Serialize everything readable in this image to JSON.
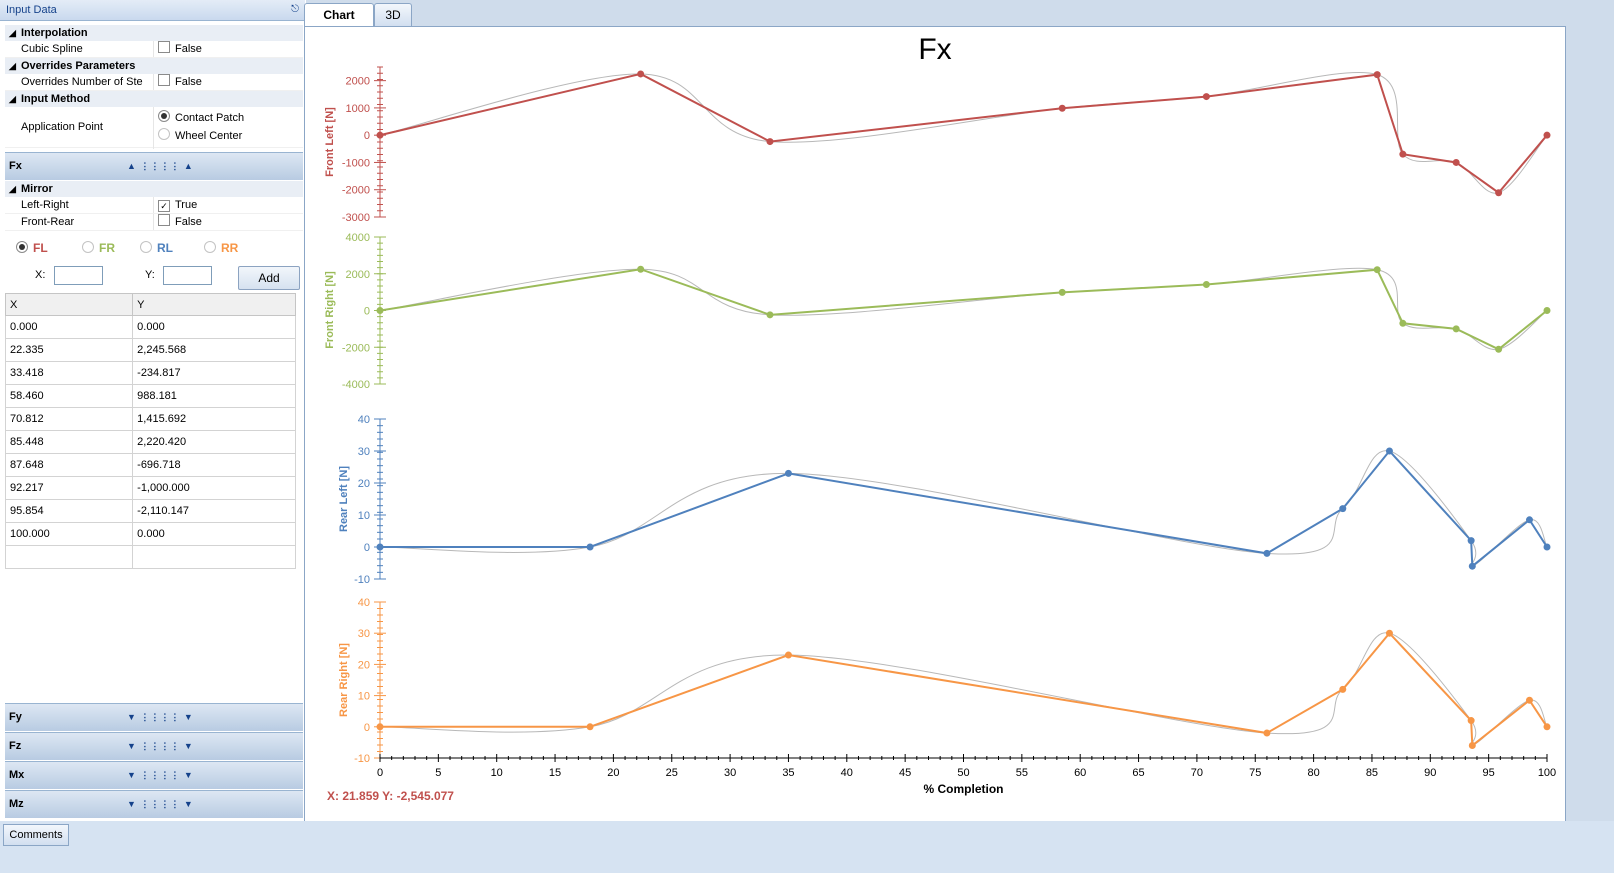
{
  "window": {
    "panel_title": "Input Data"
  },
  "tabs": [
    {
      "label": "Chart"
    },
    {
      "label": "3D"
    }
  ],
  "props": {
    "interpolation": {
      "label": "Interpolation",
      "cubic_spline_label": "Cubic Spline",
      "cubic_spline_value": "False"
    },
    "overrides": {
      "label": "Overrides Parameters",
      "override_label": "Overrides Number of Ste",
      "override_value": "False"
    },
    "input_method": {
      "label": "Input Method",
      "application_point_label": "Application Point",
      "options": [
        "Contact Patch",
        "Wheel Center"
      ]
    }
  },
  "fx_section": {
    "label": "Fx",
    "mirror_label": "Mirror",
    "left_right_label": "Left-Right",
    "left_right_value": "True",
    "front_rear_label": "Front-Rear",
    "front_rear_value": "False"
  },
  "wheel_radios": [
    {
      "label": "FL",
      "color": "#c0504d"
    },
    {
      "label": "FR",
      "color": "#9bbb59"
    },
    {
      "label": "RL",
      "color": "#4f81bd"
    },
    {
      "label": "RR",
      "color": "#f79646"
    }
  ],
  "add_row": {
    "x_label": "X:",
    "y_label": "Y:",
    "add_label": "Add"
  },
  "table": {
    "headers": [
      "X",
      "Y"
    ],
    "rows": [
      [
        "0.000",
        "0.000"
      ],
      [
        "22.335",
        "2,245.568"
      ],
      [
        "33.418",
        "-234.817"
      ],
      [
        "58.460",
        "988.181"
      ],
      [
        "70.812",
        "1,415.692"
      ],
      [
        "85.448",
        "2,220.420"
      ],
      [
        "87.648",
        "-696.718"
      ],
      [
        "92.217",
        "-1,000.000"
      ],
      [
        "95.854",
        "-2,110.147"
      ],
      [
        "100.000",
        "0.000"
      ],
      [
        "",
        ""
      ]
    ]
  },
  "sections": [
    {
      "label": "Fy"
    },
    {
      "label": "Fz"
    },
    {
      "label": "Mx"
    },
    {
      "label": "Mz"
    }
  ],
  "footer": {
    "comments_label": "Comments"
  },
  "chart_data": {
    "type": "line",
    "title": "Fx",
    "xlabel": "% Completion",
    "xlim": [
      0,
      100
    ],
    "xticks": [
      0,
      5,
      10,
      15,
      20,
      25,
      30,
      35,
      40,
      45,
      50,
      55,
      60,
      65,
      70,
      75,
      80,
      85,
      90,
      95,
      100
    ],
    "cursor_readout": "X: 21.859 Y: -2,545.077",
    "panels": [
      {
        "name": "Front Left [N]",
        "color": "#c0504d",
        "ylim": [
          -3000,
          2500
        ],
        "yticks": [
          "2000",
          "1000",
          "0",
          "-1000",
          "-2000",
          "-3000"
        ],
        "x": [
          0,
          22.335,
          33.418,
          58.46,
          70.812,
          85.448,
          87.648,
          92.217,
          95.854,
          100
        ],
        "y": [
          0,
          2245.568,
          -234.817,
          988.181,
          1415.692,
          2220.42,
          -696.718,
          -1000,
          -2110.147,
          0
        ]
      },
      {
        "name": "Front Right [N]",
        "color": "#9bbb59",
        "ylim": [
          -4000,
          4000
        ],
        "yticks": [
          "4000",
          "2000",
          "0",
          "-2000",
          "-4000"
        ],
        "x": [
          0,
          22.335,
          33.418,
          58.46,
          70.812,
          85.448,
          87.648,
          92.217,
          95.854,
          100
        ],
        "y": [
          0,
          2245.568,
          -234.817,
          988.181,
          1415.692,
          2220.42,
          -696.718,
          -1000,
          -2110.147,
          0
        ]
      },
      {
        "name": "Rear Left [N]",
        "color": "#4f81bd",
        "ylim": [
          -10,
          40
        ],
        "yticks": [
          "40",
          "30",
          "20",
          "10",
          "0",
          "-10"
        ],
        "x": [
          0,
          18,
          35,
          76,
          82.5,
          86.5,
          93.5,
          93.6,
          98.5,
          100
        ],
        "y": [
          0,
          0,
          23,
          -2,
          12,
          30,
          2,
          -6,
          8.5,
          0
        ]
      },
      {
        "name": "Rear Right [N]",
        "color": "#f79646",
        "ylim": [
          -10,
          40
        ],
        "yticks": [
          "40",
          "30",
          "20",
          "10",
          "0",
          "-10"
        ],
        "x": [
          0,
          18,
          35,
          76,
          82.5,
          86.5,
          93.5,
          93.6,
          98.5,
          100
        ],
        "y": [
          0,
          0,
          23,
          -2,
          12,
          30,
          2,
          -6,
          8.5,
          0
        ]
      }
    ]
  }
}
